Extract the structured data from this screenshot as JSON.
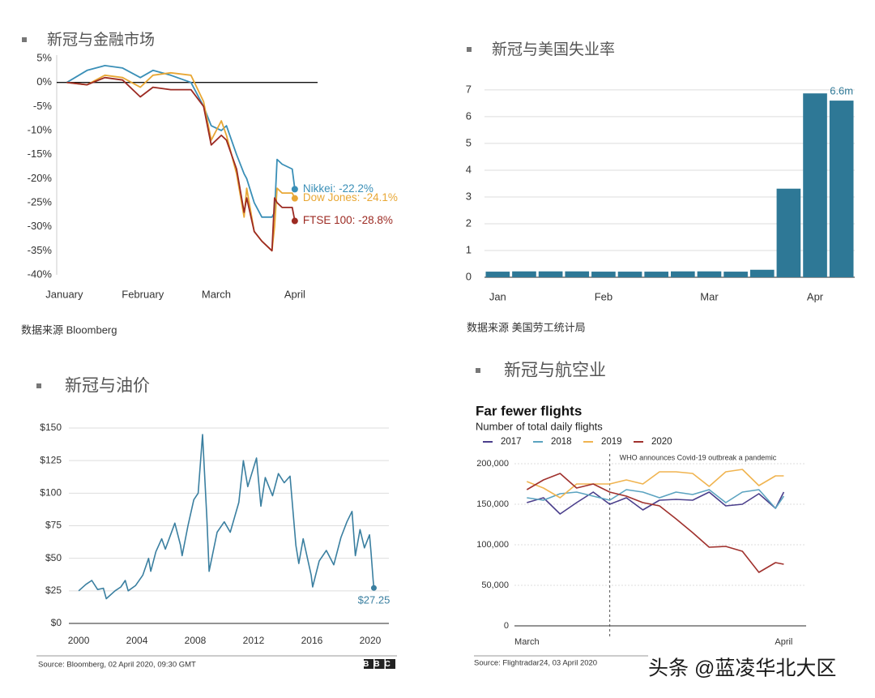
{
  "chart_data": [
    {
      "type": "line",
      "heading": "新冠与金融市场",
      "source": "数据来源 Bloomberg",
      "x": [
        2,
        10,
        17,
        24,
        31,
        36,
        43,
        51,
        56,
        59,
        63,
        65,
        69,
        72,
        73,
        76,
        79,
        83,
        84,
        85,
        87,
        91,
        92
      ],
      "xlim": [
        -2,
        101
      ],
      "xticks": [
        {
          "value": 1,
          "label": "January"
        },
        {
          "value": 32,
          "label": "February"
        },
        {
          "value": 61,
          "label": "March"
        },
        {
          "value": 92,
          "label": "April"
        }
      ],
      "ylim": [
        -40,
        5
      ],
      "yticks": [
        {
          "value": 5,
          "label": "5%"
        },
        {
          "value": 0,
          "label": "0%"
        },
        {
          "value": -5,
          "label": "-5%"
        },
        {
          "value": -10,
          "label": "-10%"
        },
        {
          "value": -15,
          "label": "-15%"
        },
        {
          "value": -20,
          "label": "-20%"
        },
        {
          "value": -25,
          "label": "-25%"
        },
        {
          "value": -30,
          "label": "-30%"
        },
        {
          "value": -35,
          "label": "-35%"
        },
        {
          "value": -40,
          "label": "-40%"
        }
      ],
      "grid": false,
      "zero_line": true,
      "series": [
        {
          "label": "Nikkei: -22.2%",
          "color": "#3a8fb7",
          "values": [
            0,
            2.5,
            3.5,
            3,
            1,
            2.5,
            1.5,
            0,
            -5,
            -9,
            -10,
            -9,
            -15,
            -19,
            -20,
            -25,
            -28,
            -28,
            -27,
            -16,
            -17,
            -18,
            -22.2
          ]
        },
        {
          "label": "Dow Jones: -24.1%",
          "color": "#e8a735",
          "values": [
            0,
            -0.5,
            1.5,
            1,
            -1,
            1.5,
            2,
            1.5,
            -4,
            -12,
            -8,
            -11,
            -19,
            -28,
            -22,
            -31,
            -33,
            -35,
            -30,
            -22,
            -23,
            -23,
            -24.1
          ]
        },
        {
          "label": "FTSE 100: -28.8%",
          "color": "#9c2a22",
          "values": [
            0,
            -0.5,
            1,
            0.5,
            -3,
            -1,
            -1.5,
            -1.5,
            -5,
            -13,
            -11,
            -12,
            -18,
            -27,
            -24,
            -31,
            -33,
            -35,
            -24,
            -25,
            -26,
            -26,
            -28.8
          ]
        }
      ]
    },
    {
      "type": "bar",
      "heading": "新冠与美国失业率",
      "source": "数据来源 美国劳工统计局",
      "categories": [
        "Jan",
        null,
        null,
        null,
        "Feb",
        null,
        null,
        null,
        "Mar",
        null,
        null,
        null,
        "Apr",
        null
      ],
      "values": [
        0.21,
        0.22,
        0.22,
        0.22,
        0.21,
        0.21,
        0.21,
        0.22,
        0.22,
        0.21,
        0.28,
        3.31,
        6.87,
        6.6
      ],
      "value_labels": [
        null,
        null,
        null,
        null,
        null,
        null,
        null,
        null,
        null,
        null,
        null,
        null,
        null,
        "6.6m"
      ],
      "color": "#2e7896",
      "ylim": [
        0,
        7.3
      ],
      "yticks": [
        0,
        1,
        2,
        3,
        4,
        5,
        6,
        7
      ],
      "grid": true
    },
    {
      "type": "line",
      "heading": "新冠与油价",
      "source": "Source: Bloomberg, 02 April 2020, 09:30 GMT",
      "logo": "BBC",
      "x": [
        2000.0,
        2000.5,
        2000.9,
        2001.3,
        2001.7,
        2001.9,
        2002.5,
        2002.9,
        2003.2,
        2003.4,
        2003.9,
        2004.4,
        2004.8,
        2004.95,
        2005.3,
        2005.7,
        2005.95,
        2006.6,
        2006.99,
        2007.1,
        2007.5,
        2007.9,
        2008.2,
        2008.5,
        2008.8,
        2008.95,
        2009.5,
        2009.99,
        2010.4,
        2010.99,
        2011.3,
        2011.6,
        2012.2,
        2012.5,
        2012.8,
        2013.3,
        2013.7,
        2014.1,
        2014.5,
        2014.9,
        2015.1,
        2015.4,
        2015.95,
        2016.05,
        2016.5,
        2016.99,
        2017.5,
        2017.99,
        2018.4,
        2018.75,
        2018.98,
        2019.3,
        2019.6,
        2019.95,
        2020.05,
        2020.2,
        2020.25
      ],
      "values": [
        25,
        30,
        33,
        26,
        27,
        19,
        25,
        28,
        33,
        25,
        29,
        37,
        50,
        40,
        55,
        65,
        57,
        77,
        60,
        52,
        75,
        95,
        100,
        145,
        80,
        40,
        70,
        78,
        70,
        93,
        125,
        105,
        127,
        90,
        112,
        98,
        115,
        108,
        113,
        60,
        46,
        65,
        37,
        28,
        48,
        56,
        45,
        66,
        78,
        86,
        52,
        72,
        58,
        68,
        55,
        33,
        27.25
      ],
      "value_labels": [
        null,
        null,
        null,
        null,
        null,
        null,
        null,
        null,
        null,
        null,
        null,
        null,
        null,
        null,
        null,
        null,
        null,
        null,
        null,
        null,
        null,
        null,
        null,
        null,
        null,
        null,
        null,
        null,
        null,
        null,
        null,
        null,
        null,
        null,
        null,
        null,
        null,
        null,
        null,
        null,
        null,
        null,
        null,
        null,
        null,
        null,
        null,
        null,
        null,
        null,
        null,
        null,
        null,
        null,
        null,
        null,
        "$27.25"
      ],
      "color": "#3a7fa0",
      "xlim": [
        1999.33,
        2021.28
      ],
      "xticks": [
        2000,
        2004,
        2008,
        2012,
        2016,
        2020
      ],
      "ylim": [
        0,
        150
      ],
      "yticks": [
        {
          "value": 0,
          "label": "$0"
        },
        {
          "value": 25,
          "label": "$25"
        },
        {
          "value": 50,
          "label": "$50"
        },
        {
          "value": 75,
          "label": "$75"
        },
        {
          "value": 100,
          "label": "$100"
        },
        {
          "value": 125,
          "label": "$125"
        },
        {
          "value": 150,
          "label": "$150"
        }
      ],
      "grid": true
    },
    {
      "type": "line",
      "heading": "新冠与航空业",
      "title": "Far fewer flights",
      "subtitle": "Number of total daily flights",
      "source": "Source: Flightradar24, 03 April 2020",
      "annotation": "WHO announces Covid-19 outbreak a pandemic",
      "annotation_x": 11,
      "x": [
        1,
        3,
        5,
        7,
        9,
        11,
        13,
        15,
        17,
        19,
        21,
        23,
        25,
        27,
        29,
        31,
        32
      ],
      "xlim": [
        -0.5,
        34.7
      ],
      "xticks": [
        {
          "value": 1,
          "label": "March"
        },
        {
          "value": 32,
          "label": "April"
        }
      ],
      "ylim": [
        0,
        200000
      ],
      "yticks": [
        0,
        {
          "value": 50000,
          "label": "50,000"
        },
        {
          "value": 100000,
          "label": "100,000"
        },
        {
          "value": 150000,
          "label": "150,000"
        },
        {
          "value": 200000,
          "label": "200,000"
        }
      ],
      "grid": true,
      "legend": "top-left",
      "series": [
        {
          "name": "2017",
          "color": "#4b3f8c",
          "values": [
            152000,
            158000,
            138000,
            152000,
            165000,
            150000,
            158000,
            143000,
            155000,
            156000,
            155000,
            165000,
            148000,
            150000,
            163000,
            145000,
            165000
          ]
        },
        {
          "name": "2018",
          "color": "#5ba3c0",
          "values": [
            158000,
            155000,
            163000,
            165000,
            160000,
            155000,
            168000,
            165000,
            158000,
            165000,
            162000,
            168000,
            152000,
            165000,
            168000,
            145000,
            160000
          ]
        },
        {
          "name": "2019",
          "color": "#f0b450",
          "values": [
            178000,
            170000,
            158000,
            175000,
            175000,
            175000,
            180000,
            175000,
            190000,
            190000,
            188000,
            172000,
            190000,
            193000,
            173000,
            185000,
            185000
          ]
        },
        {
          "name": "2020",
          "color": "#a0312d",
          "values": [
            168000,
            180000,
            188000,
            170000,
            175000,
            165000,
            160000,
            152000,
            148000,
            132000,
            115000,
            97000,
            98000,
            92000,
            66000,
            78000,
            76000
          ]
        }
      ]
    }
  ],
  "watermark": "头条 @蓝凌华北大区"
}
